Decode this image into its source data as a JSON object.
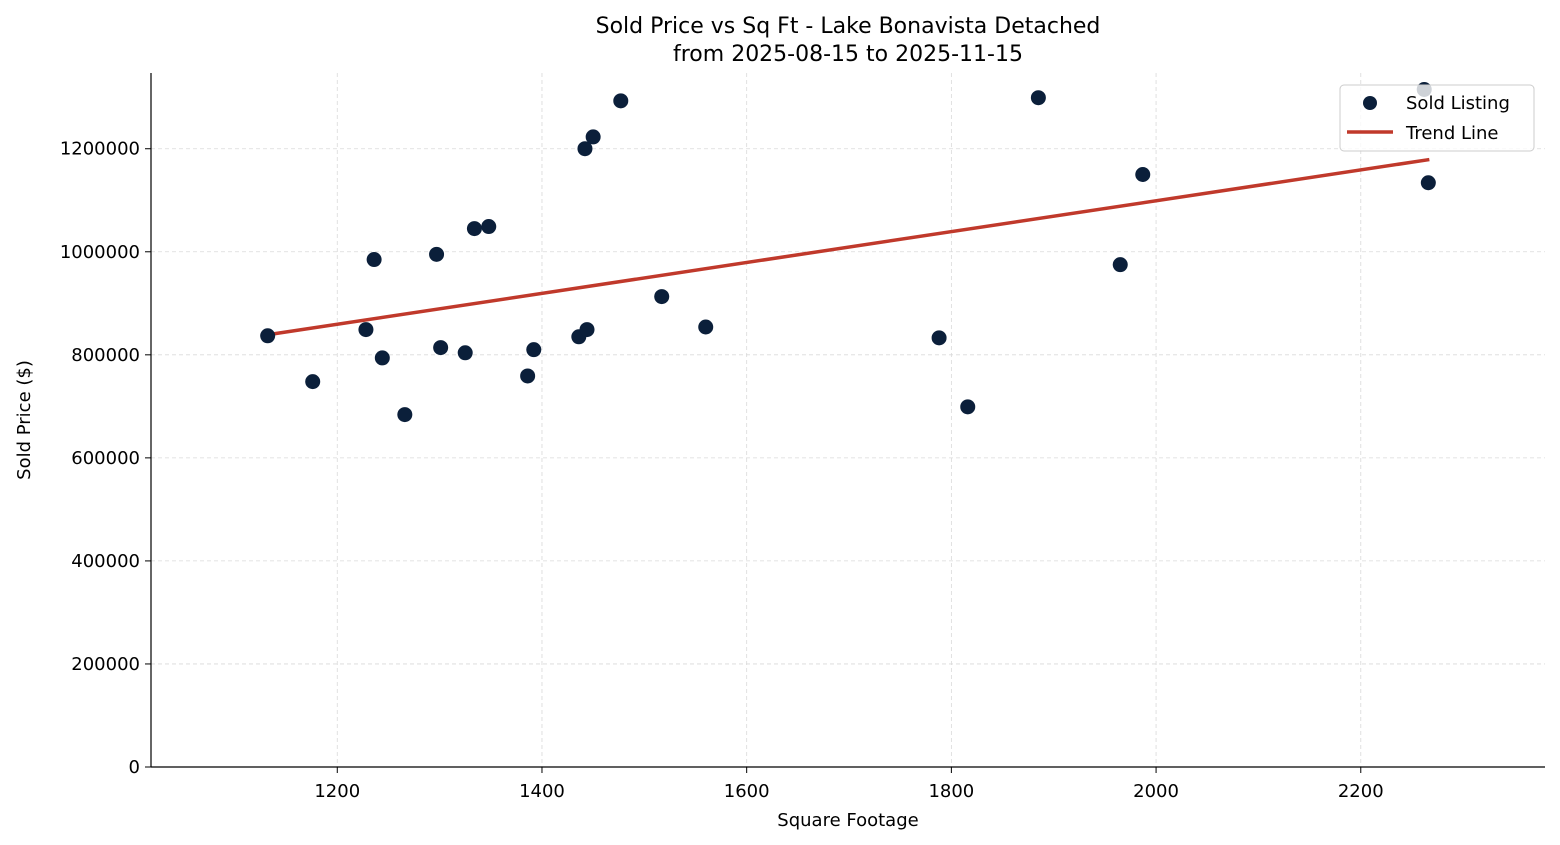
{
  "chart_data": {
    "type": "scatter",
    "title": "Sold Price vs Sq Ft - Lake Bonavista Detached",
    "subtitle": "from 2025-08-15 to 2025-11-15",
    "xlabel": "Square Footage",
    "ylabel": "Sold Price ($)",
    "xlim": [
      1018,
      2380
    ],
    "ylim": [
      0,
      1347000
    ],
    "xticks": [
      1200,
      1400,
      1600,
      1800,
      2000,
      2200
    ],
    "yticks": [
      0,
      200000,
      400000,
      600000,
      800000,
      1000000,
      1200000
    ],
    "grid": true,
    "legend_position": "top-right",
    "colors": {
      "points": "#0b1f3a",
      "trend": "#c0392b",
      "grid": "#d9d9d9"
    },
    "series": [
      {
        "name": "Sold Listing",
        "type": "scatter",
        "points": [
          [
            1132,
            837000
          ],
          [
            1176,
            748000
          ],
          [
            1228,
            849000
          ],
          [
            1236,
            985000
          ],
          [
            1244,
            794000
          ],
          [
            1266,
            684000
          ],
          [
            1297,
            995000
          ],
          [
            1301,
            814000
          ],
          [
            1325,
            804000
          ],
          [
            1334,
            1045000
          ],
          [
            1348,
            1049000
          ],
          [
            1386,
            759000
          ],
          [
            1392,
            810000
          ],
          [
            1436,
            835000
          ],
          [
            1442,
            1200000
          ],
          [
            1444,
            849000
          ],
          [
            1450,
            1223000
          ],
          [
            1477,
            1293000
          ],
          [
            1517,
            913000
          ],
          [
            1560,
            854000
          ],
          [
            1788,
            833000
          ],
          [
            1816,
            699000
          ],
          [
            1885,
            1299000
          ],
          [
            1965,
            975000
          ],
          [
            1987,
            1150000
          ],
          [
            2262,
            1315000
          ],
          [
            2266,
            1134000
          ]
        ]
      },
      {
        "name": "Trend Line",
        "type": "line",
        "points": [
          [
            1132,
            839000
          ],
          [
            2267,
            1179000
          ]
        ]
      }
    ]
  }
}
